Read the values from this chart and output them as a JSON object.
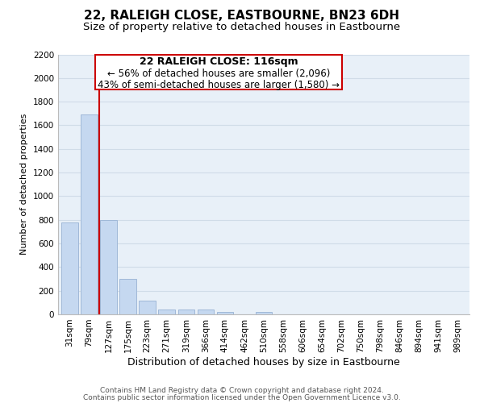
{
  "title": "22, RALEIGH CLOSE, EASTBOURNE, BN23 6DH",
  "subtitle": "Size of property relative to detached houses in Eastbourne",
  "xlabel": "Distribution of detached houses by size in Eastbourne",
  "ylabel": "Number of detached properties",
  "categories": [
    "31sqm",
    "79sqm",
    "127sqm",
    "175sqm",
    "223sqm",
    "271sqm",
    "319sqm",
    "366sqm",
    "414sqm",
    "462sqm",
    "510sqm",
    "558sqm",
    "606sqm",
    "654sqm",
    "702sqm",
    "750sqm",
    "798sqm",
    "846sqm",
    "894sqm",
    "941sqm",
    "989sqm"
  ],
  "values": [
    780,
    1690,
    800,
    300,
    115,
    38,
    38,
    38,
    20,
    0,
    20,
    0,
    0,
    0,
    0,
    0,
    0,
    0,
    0,
    0,
    0
  ],
  "bar_color": "#c5d8f0",
  "bar_edge_color": "#a0b8d8",
  "property_line_color": "#cc0000",
  "ylim": [
    0,
    2200
  ],
  "yticks": [
    0,
    200,
    400,
    600,
    800,
    1000,
    1200,
    1400,
    1600,
    1800,
    2000,
    2200
  ],
  "annotation_title": "22 RALEIGH CLOSE: 116sqm",
  "annotation_line1": "← 56% of detached houses are smaller (2,096)",
  "annotation_line2": "43% of semi-detached houses are larger (1,580) →",
  "annotation_box_color": "#ffffff",
  "annotation_box_edge": "#cc0000",
  "footer1": "Contains HM Land Registry data © Crown copyright and database right 2024.",
  "footer2": "Contains public sector information licensed under the Open Government Licence v3.0.",
  "grid_color": "#d0dce8",
  "background_color": "#e8f0f8",
  "title_fontsize": 11,
  "subtitle_fontsize": 9.5,
  "xlabel_fontsize": 9,
  "ylabel_fontsize": 8,
  "tick_fontsize": 7.5,
  "annotation_title_fontsize": 9,
  "annotation_fontsize": 8.5,
  "footer_fontsize": 6.5
}
